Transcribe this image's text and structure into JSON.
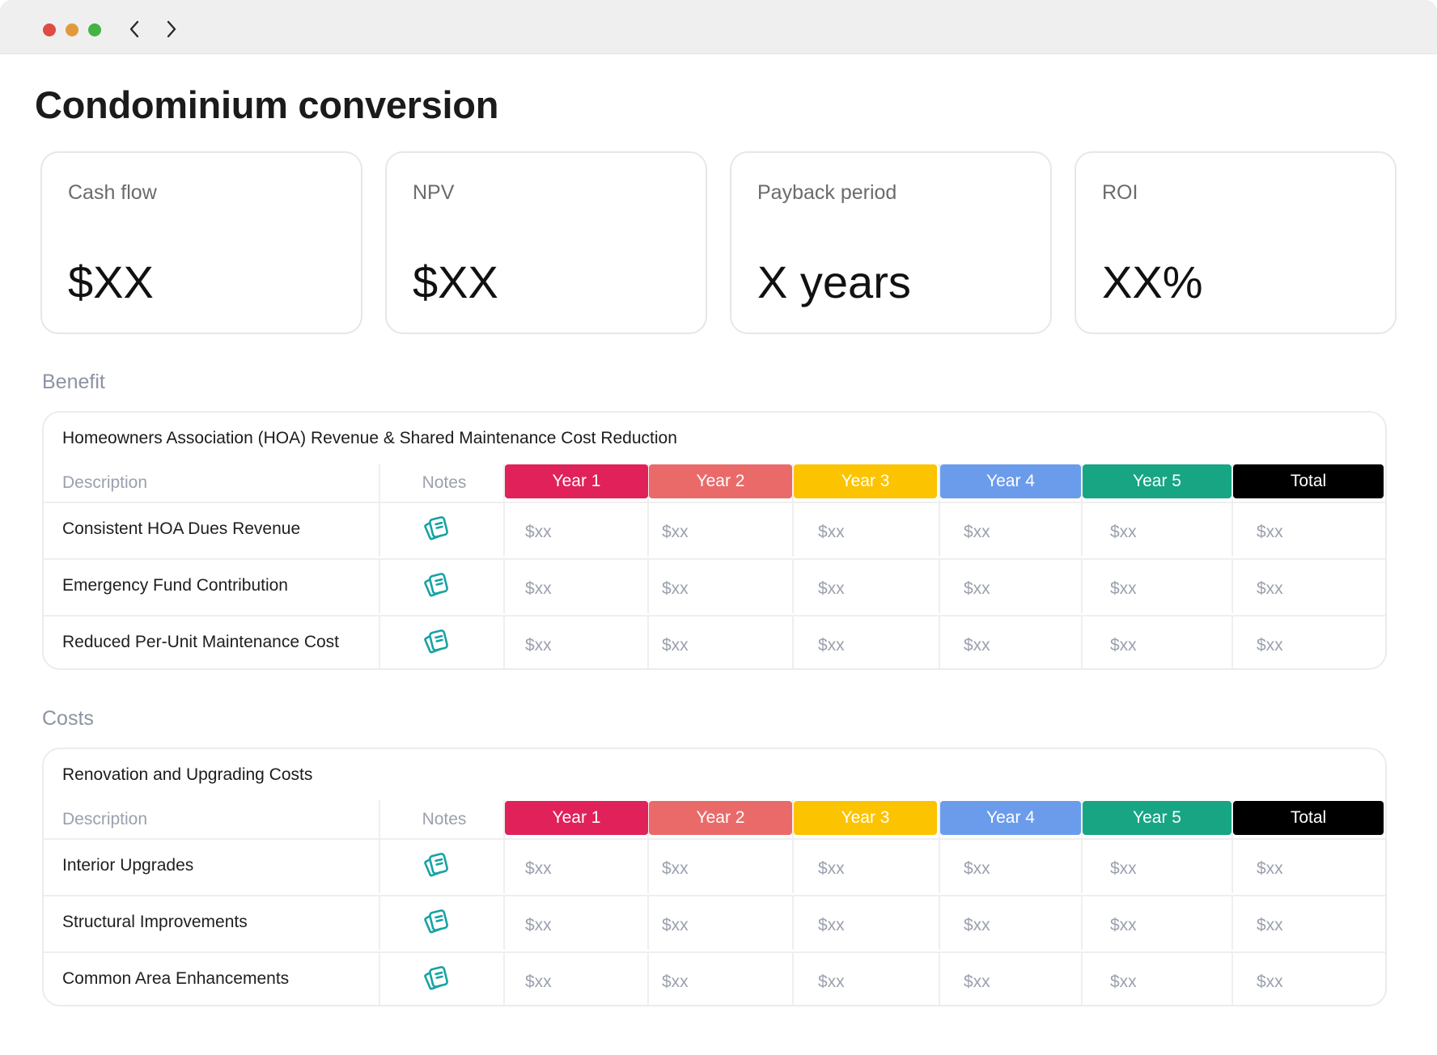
{
  "window": {
    "controls": [
      "close",
      "minimize",
      "maximize"
    ],
    "nav": {
      "back_icon": "chevron-left-icon",
      "forward_icon": "chevron-right-icon"
    }
  },
  "page": {
    "title": "Condominium conversion"
  },
  "kpis": [
    {
      "label": "Cash flow",
      "value": "$XX"
    },
    {
      "label": "NPV",
      "value": "$XX"
    },
    {
      "label": "Payback period",
      "value": "X years"
    },
    {
      "label": "ROI",
      "value": "XX%"
    }
  ],
  "columns": {
    "description": "Description",
    "notes": "Notes",
    "years": [
      {
        "label": "Year 1",
        "color": "#e0215a"
      },
      {
        "label": "Year 2",
        "color": "#ea6a6a"
      },
      {
        "label": "Year 3",
        "color": "#fcc300"
      },
      {
        "label": "Year 4",
        "color": "#6b9cec"
      },
      {
        "label": "Year 5",
        "color": "#17a584"
      },
      {
        "label": "Total",
        "color": "#000000"
      }
    ]
  },
  "notes_icon": {
    "name": "notes-icon",
    "color": "#17a2a4"
  },
  "benefit": {
    "section_label": "Benefit",
    "table_title": "Homeowners Association (HOA) Revenue & Shared Maintenance Cost Reduction",
    "rows": [
      {
        "description": "Consistent HOA Dues Revenue",
        "values": [
          "$xx",
          "$xx",
          "$xx",
          "$xx",
          "$xx",
          "$xx"
        ]
      },
      {
        "description": "Emergency Fund Contribution",
        "values": [
          "$xx",
          "$xx",
          "$xx",
          "$xx",
          "$xx",
          "$xx"
        ]
      },
      {
        "description": "Reduced Per-Unit Maintenance Cost",
        "values": [
          "$xx",
          "$xx",
          "$xx",
          "$xx",
          "$xx",
          "$xx"
        ]
      }
    ]
  },
  "costs": {
    "section_label": "Costs",
    "table_title": "Renovation and Upgrading Costs",
    "rows": [
      {
        "description": "Interior Upgrades",
        "values": [
          "$xx",
          "$xx",
          "$xx",
          "$xx",
          "$xx",
          "$xx"
        ]
      },
      {
        "description": "Structural Improvements",
        "values": [
          "$xx",
          "$xx",
          "$xx",
          "$xx",
          "$xx",
          "$xx"
        ]
      },
      {
        "description": "Common Area Enhancements",
        "values": [
          "$xx",
          "$xx",
          "$xx",
          "$xx",
          "$xx",
          "$xx"
        ]
      }
    ]
  }
}
